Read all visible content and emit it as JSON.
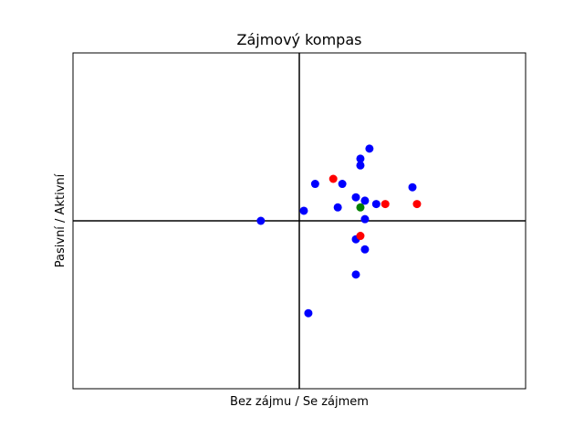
{
  "chart_data": {
    "type": "scatter",
    "title": "Zájmový kompas",
    "xlabel": "Bez zájmu / Se zájmem",
    "ylabel": "Pasivní / Aktivní",
    "xlim": [
      -1,
      1
    ],
    "ylim": [
      -1,
      1
    ],
    "show_ticks": false,
    "grid": false,
    "legend": false,
    "quadrant_lines": {
      "x": 0,
      "y": 0,
      "color": "#000000"
    },
    "series": [
      {
        "color": "#0000ff",
        "points": [
          {
            "x": 0.31,
            "y": 0.43
          },
          {
            "x": 0.27,
            "y": 0.37
          },
          {
            "x": 0.27,
            "y": 0.33
          },
          {
            "x": 0.07,
            "y": 0.22
          },
          {
            "x": 0.19,
            "y": 0.22
          },
          {
            "x": 0.5,
            "y": 0.2
          },
          {
            "x": 0.25,
            "y": 0.14
          },
          {
            "x": 0.29,
            "y": 0.12
          },
          {
            "x": 0.34,
            "y": 0.1
          },
          {
            "x": 0.17,
            "y": 0.08
          },
          {
            "x": 0.02,
            "y": 0.06
          },
          {
            "x": 0.29,
            "y": 0.01
          },
          {
            "x": -0.17,
            "y": 0.0
          },
          {
            "x": 0.25,
            "y": -0.11
          },
          {
            "x": 0.29,
            "y": -0.17
          },
          {
            "x": 0.25,
            "y": -0.32
          },
          {
            "x": 0.04,
            "y": -0.55
          }
        ]
      },
      {
        "color": "#ff0000",
        "points": [
          {
            "x": 0.15,
            "y": 0.25
          },
          {
            "x": 0.38,
            "y": 0.1
          },
          {
            "x": 0.52,
            "y": 0.1
          },
          {
            "x": 0.27,
            "y": -0.09
          }
        ]
      },
      {
        "color": "#008000",
        "points": [
          {
            "x": 0.27,
            "y": 0.08
          }
        ]
      }
    ]
  }
}
